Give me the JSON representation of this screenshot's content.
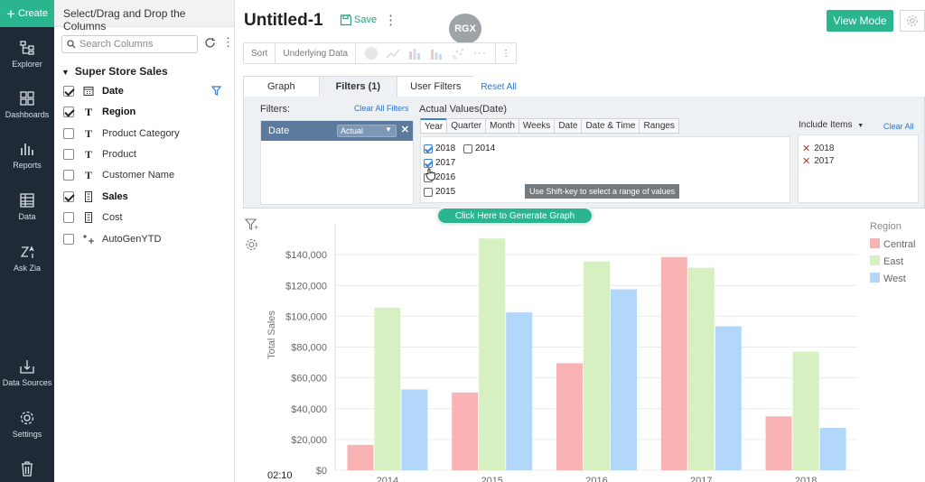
{
  "nav": {
    "create": "Create",
    "items": [
      {
        "label": "Explorer",
        "icon": "explorer-icon"
      },
      {
        "label": "Dashboards",
        "icon": "dashboards-icon"
      },
      {
        "label": "Reports",
        "icon": "reports-icon"
      },
      {
        "label": "Data",
        "icon": "data-icon"
      },
      {
        "label": "Ask Zia",
        "icon": "ask-zia-icon"
      },
      {
        "label": "Data Sources",
        "icon": "data-sources-icon"
      },
      {
        "label": "Settings",
        "icon": "settings-icon"
      }
    ]
  },
  "columns_panel": {
    "header": "Select/Drag and Drop the Columns",
    "search_placeholder": "Search Columns",
    "group": "Super Store Sales",
    "columns": [
      {
        "label": "Date",
        "type": "date",
        "checked": true
      },
      {
        "label": "Region",
        "type": "T",
        "checked": true
      },
      {
        "label": "Product Category",
        "type": "T",
        "checked": false
      },
      {
        "label": "Product",
        "type": "T",
        "checked": false
      },
      {
        "label": "Customer Name",
        "type": "T",
        "checked": false
      },
      {
        "label": "Sales",
        "type": "num",
        "checked": true
      },
      {
        "label": "Cost",
        "type": "num",
        "checked": false
      },
      {
        "label": "AutoGenYTD",
        "type": "auto",
        "checked": false
      }
    ]
  },
  "header": {
    "title": "Untitled-1",
    "save": "Save",
    "rgx": "RGX",
    "view_mode": "View Mode"
  },
  "toolbar": {
    "sort": "Sort",
    "underlying": "Underlying Data"
  },
  "tabs": {
    "graph": "Graph",
    "filters": "Filters (1)",
    "user_filters": "User Filters",
    "reset_all": "Reset All"
  },
  "filter_panel": {
    "filters_label": "Filters:",
    "clear_all_filters": "Clear All Filters",
    "date_field": "Date",
    "date_mode": "Actual",
    "actual_values_label": "Actual Values(Date)",
    "granularity_tabs": [
      "Year",
      "Quarter",
      "Month",
      "Weeks",
      "Date",
      "Date & Time",
      "Ranges"
    ],
    "years": [
      {
        "label": "2018",
        "checked": true
      },
      {
        "label": "2014",
        "checked": false
      },
      {
        "label": "2017",
        "checked": true
      },
      {
        "label": "2016",
        "checked": false
      },
      {
        "label": "2015",
        "checked": false
      }
    ],
    "tooltip": "Use Shift-key to select a range of values",
    "include_label": "Include Items",
    "clear_all": "Clear All",
    "included": [
      "2018",
      "2017"
    ]
  },
  "generate_button": "Click Here to Generate Graph",
  "chart_data": {
    "type": "bar",
    "categories": [
      "2014",
      "2015",
      "2016",
      "2017",
      "2018"
    ],
    "series": [
      {
        "name": "Central",
        "color": "#f9b3b5",
        "values": [
          16500,
          50500,
          69500,
          138500,
          35000
        ]
      },
      {
        "name": "East",
        "color": "#d6f0c2",
        "values": [
          105500,
          150500,
          135500,
          131500,
          77000
        ]
      },
      {
        "name": "West",
        "color": "#b3d6fb",
        "values": [
          52500,
          102500,
          117500,
          93500,
          27500
        ]
      }
    ],
    "ylabel": "Total Sales",
    "legend_title": "Region",
    "y_ticks": [
      "$0",
      "$20,000",
      "$40,000",
      "$60,000",
      "$80,000",
      "$100,000",
      "$120,000",
      "$140,000"
    ],
    "ylim": [
      0,
      160000
    ],
    "legend": "right",
    "grid": true
  },
  "timer": "02:10"
}
